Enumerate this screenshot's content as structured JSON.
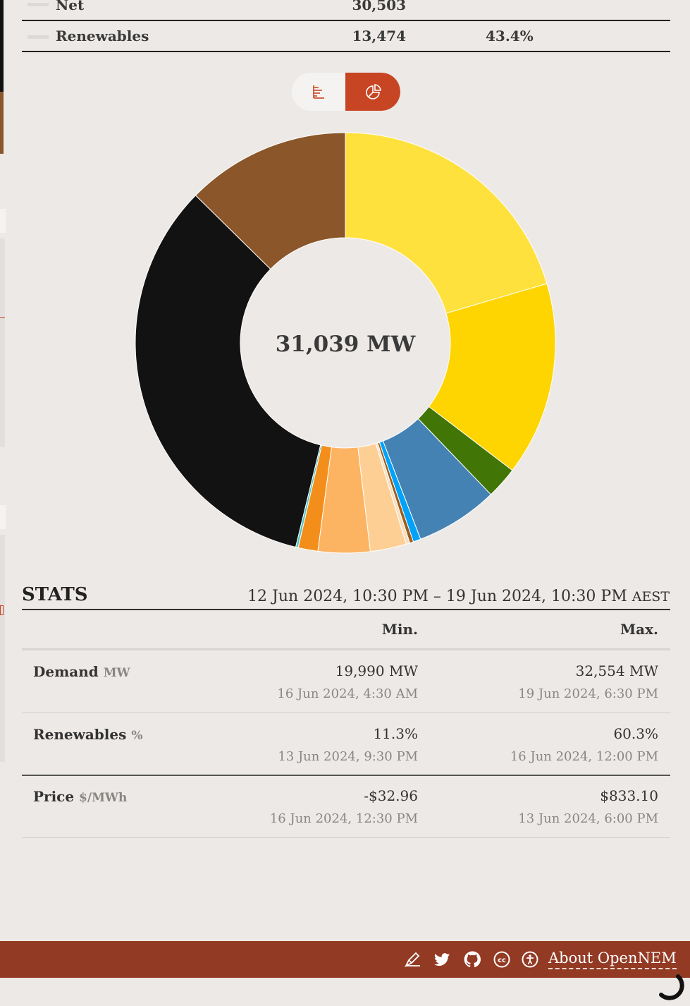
{
  "summary": {
    "rows": [
      {
        "label": "Net",
        "value": "30,503",
        "pct": ""
      },
      {
        "label": "Renewables",
        "value": "13,474",
        "pct": "43.4%"
      }
    ]
  },
  "toggle": {
    "options": [
      "bar-chart-icon",
      "pie-chart-icon"
    ],
    "active": "pie-chart-icon"
  },
  "chart_data": {
    "type": "pie",
    "style": "donut",
    "center_label": "31,039 MW",
    "total": 31039,
    "slices": [
      {
        "value": 6350,
        "color": "#fee13c"
      },
      {
        "value": 4630,
        "color": "#fed500"
      },
      {
        "value": 760,
        "color": "#417505"
      },
      {
        "value": 1970,
        "color": "#4582b4"
      },
      {
        "value": 180,
        "color": "#00a2fa"
      },
      {
        "value": 90,
        "color": "#9c5d1e"
      },
      {
        "value": 90,
        "color": "#f8dfbe"
      },
      {
        "value": 860,
        "color": "#fecf94"
      },
      {
        "value": 1240,
        "color": "#fdb462"
      },
      {
        "value": 470,
        "color": "#f48e1b"
      },
      {
        "value": 60,
        "color": "#4ec6c7"
      },
      {
        "value": 10420,
        "color": "#121212"
      },
      {
        "value": 3919,
        "color": "#8b572a"
      }
    ]
  },
  "stats": {
    "title": "STATS",
    "range": "12 Jun 2024, 10:30 PM – 19 Jun 2024, 10:30 PM",
    "timezone": "AEST",
    "min_header": "Min.",
    "max_header": "Max.",
    "rows": [
      {
        "label": "Demand",
        "unit": "MW",
        "min": "19,990 MW",
        "min_date": "16 Jun 2024, 4:30 AM",
        "max": "32,554 MW",
        "max_date": "19 Jun 2024, 6:30 PM"
      },
      {
        "label": "Renewables",
        "unit": "%",
        "min": "11.3%",
        "min_date": "13 Jun 2024, 9:30 PM",
        "max": "60.3%",
        "max_date": "16 Jun 2024, 12:00 PM"
      },
      {
        "label": "Price",
        "unit": "$/MWh",
        "min": "-$32.96",
        "min_date": "16 Jun 2024, 12:30 PM",
        "max": "$833.10",
        "max_date": "13 Jun 2024, 6:00 PM"
      }
    ]
  },
  "footer": {
    "icons": [
      "edit-icon",
      "twitter-icon",
      "github-icon",
      "creative-commons-icon",
      "accessibility-icon"
    ],
    "about_label": "About OpenNEM"
  },
  "colors": {
    "accent": "#c74523",
    "footer": "#933a24",
    "background": "#ede9e6"
  }
}
